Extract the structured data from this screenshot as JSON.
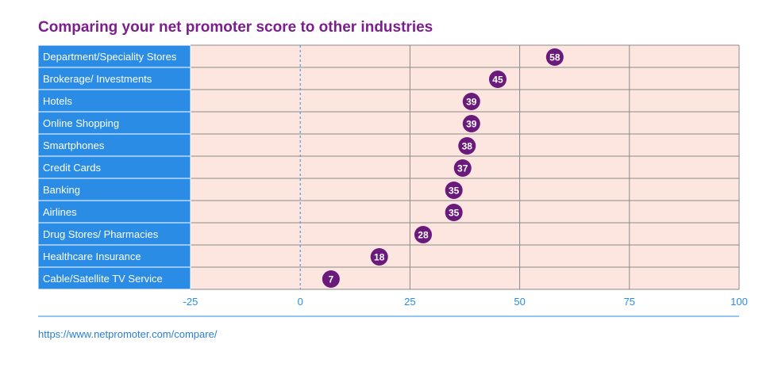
{
  "title": "Comparing your net promoter score to other industries",
  "source_url": "https://www.netpromoter.com/compare/",
  "colors": {
    "title": "#7a1f8c",
    "label_fill": "#2b8ce6",
    "plot_fill": "#fde6df",
    "marker": "#6a1a7a",
    "grid": "#8a8a8a",
    "zero_line": "#2b8ce6",
    "axis_text": "#2b8ce6"
  },
  "chart_data": {
    "type": "scatter",
    "title": "Comparing your net promoter score to other industries",
    "xlabel": "",
    "ylabel": "",
    "xlim": [
      -25,
      100
    ],
    "x_ticks": [
      "-25",
      "0",
      "25",
      "50",
      "75",
      "100"
    ],
    "x_tick_values": [
      -25,
      0,
      25,
      50,
      75,
      100
    ],
    "categories": [
      "Department/Speciality Stores",
      "Brokerage/ Investments",
      "Hotels",
      "Online Shopping",
      "Smartphones",
      "Credit Cards",
      "Banking",
      "Airlines",
      "Drug Stores/ Pharmacies",
      "Healthcare Insurance",
      "Cable/Satellite TV Service"
    ],
    "values": [
      58,
      45,
      39,
      39,
      38,
      37,
      35,
      35,
      28,
      18,
      7
    ],
    "grid": true,
    "zero_line": "dashed"
  }
}
